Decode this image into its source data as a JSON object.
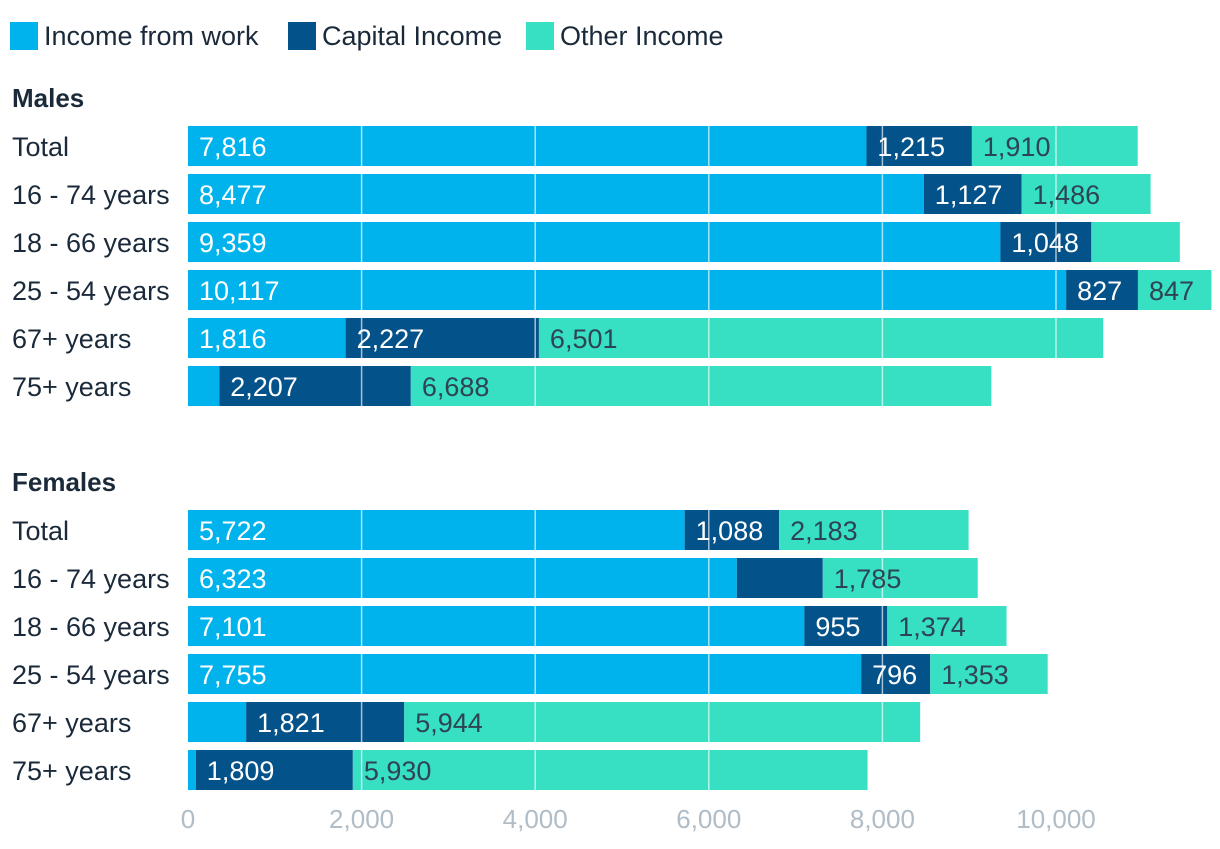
{
  "legend": [
    {
      "label": "Income from work",
      "color": "#00b3ec"
    },
    {
      "label": "Capital Income",
      "color": "#03528a"
    },
    {
      "label": "Other Income",
      "color": "#37dfc3"
    }
  ],
  "colors": {
    "work": "#00b3ec",
    "capital": "#03528a",
    "other": "#37dfc3",
    "label_text": "#1b2a3a",
    "tick_text": "#b0bcc6",
    "grid": "#ffffff"
  },
  "chart_data": {
    "type": "bar",
    "orientation": "horizontal",
    "stacked": true,
    "xlim": [
      0,
      11600
    ],
    "x_ticks": [
      0,
      2000,
      4000,
      6000,
      8000,
      10000
    ],
    "x_tick_labels": [
      "0",
      "2,000",
      "4,000",
      "6,000",
      "8,000",
      "10,000"
    ],
    "grid": true,
    "legend_position": "top-left",
    "series_names": [
      "Income from work",
      "Capital Income",
      "Other Income"
    ],
    "groups": [
      {
        "name": "Males",
        "categories": [
          "Total",
          "16 - 74 years",
          "18 - 66 years",
          "25 - 54 years",
          "67+ years",
          "75+ years"
        ],
        "series": [
          {
            "name": "Income from work",
            "values": [
              7816,
              8477,
              9359,
              10117,
              1816,
              360
            ],
            "labels": [
              "7,816",
              "8,477",
              "9,359",
              "10,117",
              "1,816",
              ""
            ]
          },
          {
            "name": "Capital Income",
            "values": [
              1215,
              1127,
              1048,
              827,
              2227,
              2207
            ],
            "labels": [
              "1,215",
              "1,127",
              "1,048",
              "827",
              "2,227",
              "2,207"
            ]
          },
          {
            "name": "Other Income",
            "values": [
              1910,
              1486,
              1020,
              847,
              6501,
              6688
            ],
            "labels": [
              "1,910",
              "1,486",
              "",
              "847",
              "6,501",
              "6,688"
            ]
          }
        ]
      },
      {
        "name": "Females",
        "categories": [
          "Total",
          "16 - 74 years",
          "18 - 66 years",
          "25 - 54 years",
          "67+ years",
          "75+ years"
        ],
        "series": [
          {
            "name": "Income from work",
            "values": [
              5722,
              6323,
              7101,
              7755,
              670,
              90
            ],
            "labels": [
              "5,722",
              "6,323",
              "7,101",
              "7,755",
              "",
              ""
            ]
          },
          {
            "name": "Capital Income",
            "values": [
              1088,
              990,
              955,
              796,
              1821,
              1809
            ],
            "labels": [
              "1,088",
              "",
              "955",
              "796",
              "1,821",
              "1,809"
            ]
          },
          {
            "name": "Other Income",
            "values": [
              2183,
              1785,
              1374,
              1353,
              5944,
              5930
            ],
            "labels": [
              "2,183",
              "1,785",
              "1,374",
              "1,353",
              "5,944",
              "5,930"
            ]
          }
        ]
      }
    ]
  }
}
